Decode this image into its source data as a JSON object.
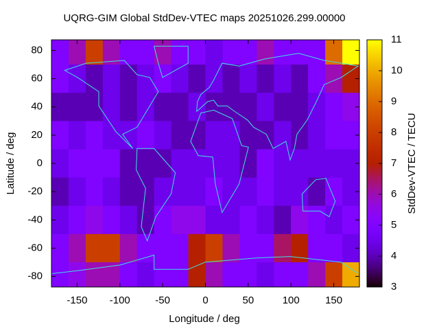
{
  "chart_data": {
    "type": "heatmap",
    "title": "UQRG-GIM Global StdDev-VTEC maps 20251026.299.00000",
    "x_label": "Longitude / deg",
    "y_label": "Latitude / deg",
    "colorbar_label": "StdDev-VTEC / TECU",
    "xlim": [
      -180,
      180
    ],
    "ylim": [
      -87.5,
      87.5
    ],
    "zlim": [
      3,
      11
    ],
    "xticks": [
      -150,
      -100,
      -50,
      0,
      50,
      100,
      150
    ],
    "yticks": [
      -80,
      -60,
      -40,
      -20,
      0,
      20,
      40,
      60,
      80
    ],
    "zticks": [
      3,
      4,
      5,
      6,
      7,
      8,
      9,
      10,
      11
    ],
    "x": [
      -170,
      -150,
      -130,
      -110,
      -90,
      -70,
      -50,
      -30,
      -10,
      10,
      30,
      50,
      70,
      90,
      110,
      130,
      150,
      170
    ],
    "y": [
      80,
      60,
      40,
      20,
      0,
      -20,
      -40,
      -60,
      -80
    ],
    "values": [
      [
        5,
        6,
        8,
        6,
        5,
        5,
        6,
        5,
        5,
        4.5,
        5,
        5,
        6,
        5,
        5,
        5,
        9,
        11
      ],
      [
        5,
        4.5,
        4,
        4.5,
        4,
        4.5,
        5,
        4.5,
        4,
        4.5,
        4,
        4.5,
        4,
        4.5,
        4,
        5,
        6,
        7
      ],
      [
        4,
        4,
        4,
        4.5,
        4,
        4.5,
        4,
        4,
        4.5,
        4,
        4,
        4,
        4.5,
        4,
        4,
        4.5,
        5,
        5.5
      ],
      [
        5,
        4.5,
        5,
        4.5,
        4.5,
        5,
        4.5,
        4,
        4,
        4.5,
        4.5,
        4,
        4,
        4.5,
        4,
        4.5,
        5,
        5
      ],
      [
        4.5,
        5,
        5,
        5,
        4,
        4,
        4,
        4.5,
        4.5,
        4.5,
        4.5,
        4,
        5,
        4.5,
        4.5,
        4.5,
        4.5,
        4.5
      ],
      [
        4,
        4.5,
        5,
        4.5,
        4,
        4,
        4.5,
        4.5,
        4.5,
        5,
        4.5,
        4.5,
        5,
        4.5,
        4.5,
        4,
        5,
        4.5
      ],
      [
        4.5,
        5,
        5.5,
        5,
        4.5,
        4,
        5,
        5.5,
        5.5,
        4.5,
        4.5,
        5,
        4.5,
        4,
        5.5,
        5,
        4.5,
        5
      ],
      [
        5,
        6,
        8,
        8,
        6,
        5,
        5,
        5,
        7,
        8,
        6,
        5,
        5,
        6.5,
        7,
        5,
        5,
        4.5
      ],
      [
        5,
        5.5,
        6,
        6,
        5,
        4.5,
        5,
        5,
        7,
        6,
        5,
        5,
        4.5,
        5,
        5,
        6,
        8,
        10
      ]
    ]
  }
}
